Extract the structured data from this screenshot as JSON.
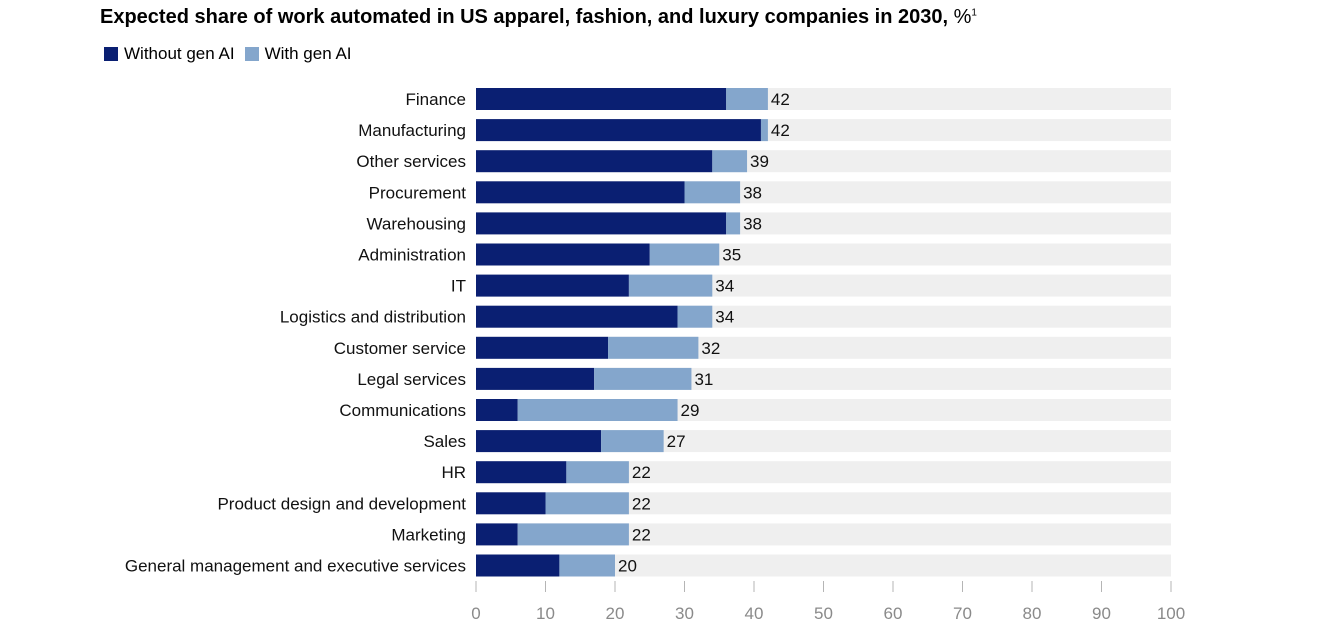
{
  "chart_data": {
    "type": "bar",
    "orientation": "horizontal",
    "stacked": true,
    "title": "Expected share of work automated in US apparel, fashion, and luxury companies in 2030,",
    "title_unit": "%",
    "title_footnote": "1",
    "categories": [
      "Finance",
      "Manufacturing",
      "Other services",
      "Procurement",
      "Warehousing",
      "Administration",
      "IT",
      "Logistics and distribution",
      "Customer service",
      "Legal services",
      "Communications",
      "Sales",
      "HR",
      "Product design and development",
      "Marketing",
      "General management and executive services"
    ],
    "series": [
      {
        "name": "Without gen AI",
        "color": "#0a1f72",
        "values": [
          36,
          41,
          34,
          30,
          36,
          25,
          22,
          29,
          19,
          17,
          6,
          18,
          13,
          10,
          6,
          12
        ]
      },
      {
        "name": "With gen AI",
        "color": "#84a6cc",
        "values": [
          6,
          1,
          5,
          8,
          2,
          10,
          12,
          5,
          13,
          14,
          23,
          9,
          9,
          12,
          16,
          8
        ]
      }
    ],
    "totals": [
      42,
      42,
      39,
      38,
      38,
      35,
      34,
      34,
      32,
      31,
      29,
      27,
      22,
      22,
      22,
      20
    ],
    "xlim": [
      0,
      100
    ],
    "xticks": [
      0,
      10,
      20,
      30,
      40,
      50,
      60,
      70,
      80,
      90,
      100
    ],
    "background_bar_color": "#efefef",
    "legend_position": "top-left"
  }
}
